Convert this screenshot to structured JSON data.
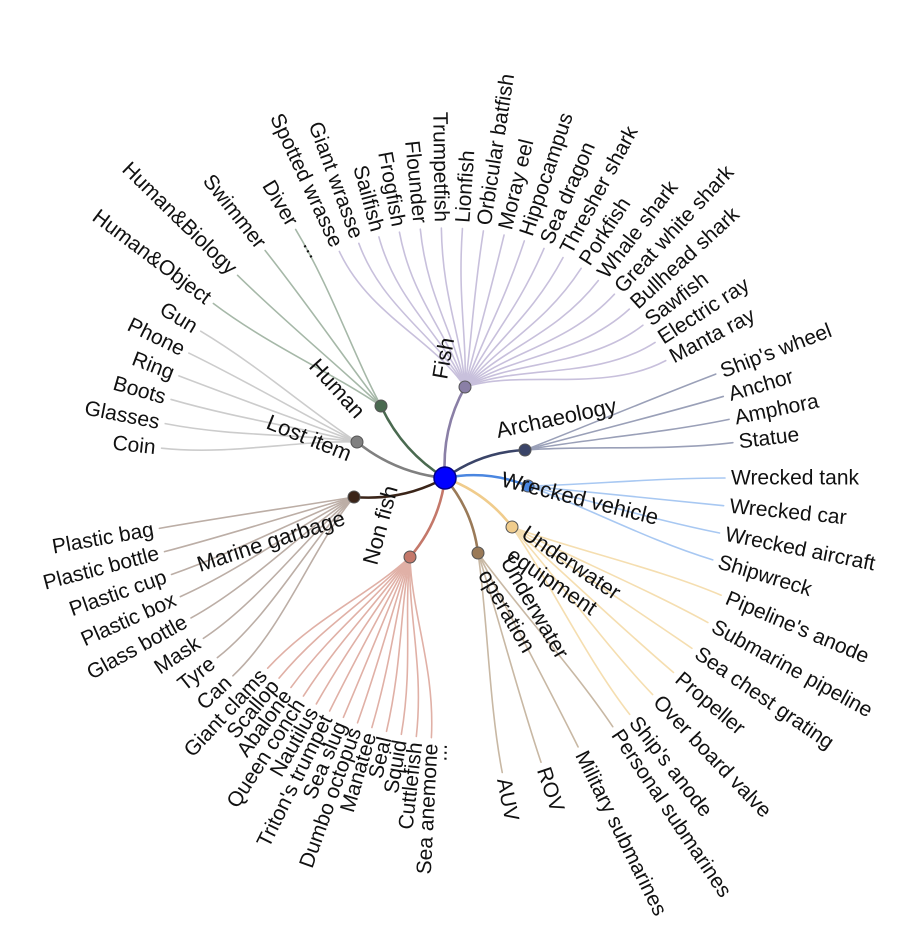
{
  "root": {
    "color": "#0000ff"
  },
  "categories": [
    {
      "id": "fish",
      "label": "Fish",
      "color": "#8a7fa6",
      "line": "#c8c0dc",
      "leaves": [
        "Spotted wrasse",
        "Giant wrasse",
        "Sailfish",
        "Frogfish",
        "Flounder",
        "Trumpetfish",
        "Lionfish",
        "Orbicular batfish",
        "Moray eel",
        "Hippocampus",
        "Sea dragon",
        "Thresher shark",
        "Porkfish",
        "Whale shark",
        "Great white shark",
        "Bullhead shark",
        "Sawfish",
        "Electric ray",
        "Manta ray"
      ],
      "ellipsis": "..."
    },
    {
      "id": "archaeology",
      "label": "Archaeology",
      "color": "#3a4468",
      "line": "#9aa0b8",
      "leaves": [
        "Ship's wheel",
        "Anchor",
        "Amphora",
        "Statue"
      ]
    },
    {
      "id": "wrecked-vehicle",
      "label": "Wrecked vehicle",
      "color": "#4a86e0",
      "line": "#a8c8f2",
      "leaves": [
        "Wrecked tank",
        "Wrecked car",
        "Wrecked aircraft",
        "Shipwreck"
      ]
    },
    {
      "id": "underwater-equipment",
      "label1": "Underwater",
      "label2": "equipment",
      "color": "#f0cc8c",
      "line": "#f5deb0",
      "leaves": [
        "Pipeline's anode",
        "Submarine pipeline",
        "Sea chest grating",
        "Propeller",
        "Over board valve",
        "Ship's anode"
      ]
    },
    {
      "id": "underwater-operation",
      "label1": "Underwater",
      "label2": "operation",
      "color": "#9a7a58",
      "line": "#c8b8a4",
      "leaves": [
        "Personal submarines",
        "Military submarines",
        "ROV",
        "AUV"
      ]
    },
    {
      "id": "non-fish",
      "label": "Non fish",
      "color": "#c4786a",
      "line": "#e0b0a6",
      "leaves": [
        "Giant clams",
        "Scallop",
        "Abalone",
        "Queen conch",
        "Nautilus",
        "Triton's trumpet",
        "Sea slug",
        "Dumbo octopus",
        "Manatee",
        "Seal",
        "Squid",
        "Cuttlefish",
        "Sea anemone"
      ],
      "ellipsis": "..."
    },
    {
      "id": "marine-garbage",
      "label": "Marine garbage",
      "color": "#3a2418",
      "line": "#bcaea6",
      "leaves": [
        "Plastic bag",
        "Plastic bottle",
        "Plastic cup",
        "Plastic box",
        "Glass bottle",
        "Mask",
        "Tyre",
        "Can"
      ]
    },
    {
      "id": "lost-item",
      "label": "Lost item",
      "color": "#808080",
      "line": "#cccccc",
      "leaves": [
        "Gun",
        "Phone",
        "Ring",
        "Boots",
        "Glasses",
        "Coin"
      ]
    },
    {
      "id": "human",
      "label": "Human",
      "color": "#4a6a50",
      "line": "#a6b8a8",
      "leaves": [
        "Diver",
        "Swimmer",
        "Human&Biology",
        "Human&Object"
      ]
    }
  ]
}
